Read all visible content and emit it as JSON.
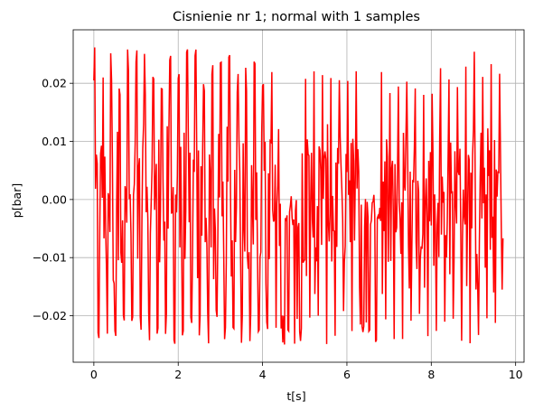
{
  "chart_data": {
    "type": "line",
    "title": "Cisnienie nr 1; normal with 1 samples",
    "xlabel": "t[s]",
    "ylabel": "p[bar]",
    "xlim": [
      -0.49,
      10.2
    ],
    "ylim": [
      -0.028,
      0.0292
    ],
    "xticks": [
      0,
      2,
      4,
      6,
      8,
      10
    ],
    "xtick_labels": [
      "0",
      "2",
      "4",
      "6",
      "8",
      "10"
    ],
    "yticks": [
      -0.02,
      -0.01,
      0.0,
      0.01,
      0.02
    ],
    "ytick_labels": [
      "−0.02",
      "−0.01",
      "0.00",
      "0.01",
      "0.02"
    ],
    "grid": true,
    "legend": false,
    "series": [
      {
        "color": "#ff0000",
        "x_start": 0.0,
        "x_end": 9.7,
        "dt": 0.02,
        "period": 0.2,
        "y_min_observed": -0.025,
        "y_max_observed": 0.0262,
        "quiet_segments": [
          [
            4.4,
            4.9
          ],
          [
            6.35,
            6.8
          ]
        ]
      }
    ]
  }
}
